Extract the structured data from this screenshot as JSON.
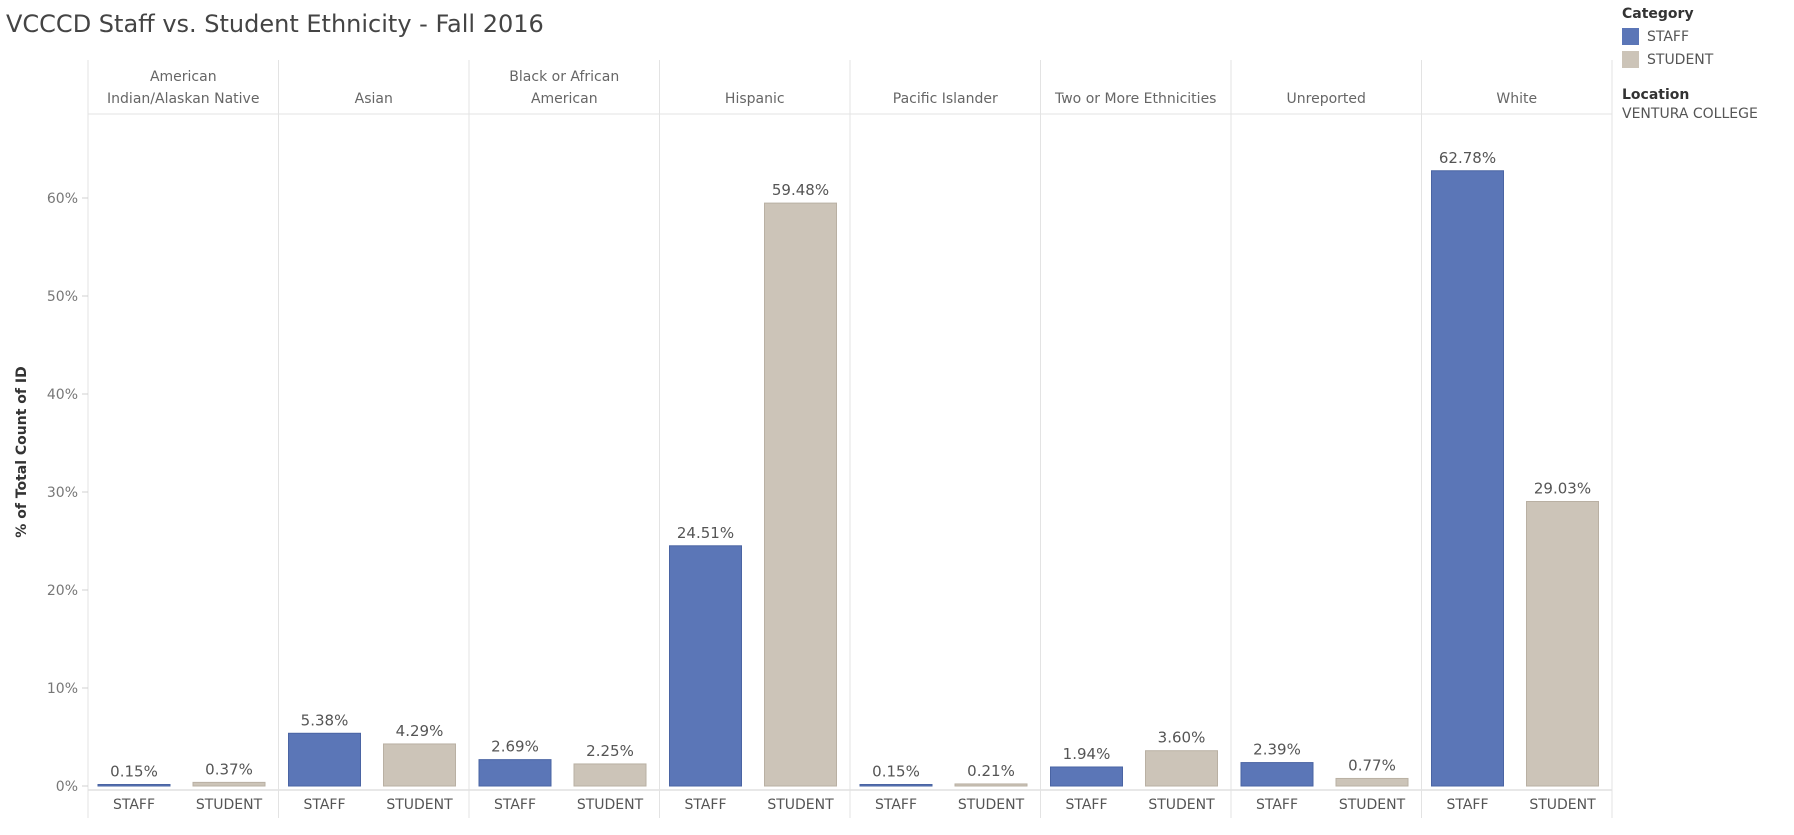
{
  "title": "VCCCD Staff vs. Student Ethnicity - Fall 2016",
  "legend": {
    "title": "Category",
    "items": [
      {
        "label": "STAFF",
        "color": "#5b76b7"
      },
      {
        "label": "STUDENT",
        "color": "#ccc4b8"
      }
    ],
    "location_title": "Location",
    "location_value": "VENTURA COLLEGE"
  },
  "chart_data": {
    "type": "bar",
    "title": "VCCCD Staff vs. Student Ethnicity - Fall 2016",
    "ylabel": "% of Total Count of ID",
    "ylim": [
      0,
      68
    ],
    "yticks": [
      0,
      10,
      20,
      30,
      40,
      50,
      60
    ],
    "ytick_labels": [
      "0%",
      "10%",
      "20%",
      "30%",
      "40%",
      "50%",
      "60%"
    ],
    "grid": false,
    "legend_position": "top-right",
    "groups": [
      {
        "name_lines": [
          "American",
          "Indian/Alaskan Native"
        ],
        "categories": [
          "STAFF",
          "STUDENT"
        ],
        "values": [
          0.15,
          0.37
        ],
        "labels": [
          "0.15%",
          "0.37%"
        ]
      },
      {
        "name_lines": [
          "Asian"
        ],
        "categories": [
          "STAFF",
          "STUDENT"
        ],
        "values": [
          5.38,
          4.29
        ],
        "labels": [
          "5.38%",
          "4.29%"
        ]
      },
      {
        "name_lines": [
          "Black or African",
          "American"
        ],
        "categories": [
          "STAFF",
          "STUDENT"
        ],
        "values": [
          2.69,
          2.25
        ],
        "labels": [
          "2.69%",
          "2.25%"
        ]
      },
      {
        "name_lines": [
          "Hispanic"
        ],
        "categories": [
          "STAFF",
          "STUDENT"
        ],
        "values": [
          24.51,
          59.48
        ],
        "labels": [
          "24.51%",
          "59.48%"
        ]
      },
      {
        "name_lines": [
          "Pacific Islander"
        ],
        "categories": [
          "STAFF",
          "STUDENT"
        ],
        "values": [
          0.15,
          0.21
        ],
        "labels": [
          "0.15%",
          "0.21%"
        ]
      },
      {
        "name_lines": [
          "Two or More Ethnicities"
        ],
        "categories": [
          "STAFF",
          "STUDENT"
        ],
        "values": [
          1.94,
          3.6
        ],
        "labels": [
          "1.94%",
          "3.60%"
        ]
      },
      {
        "name_lines": [
          "Unreported"
        ],
        "categories": [
          "STAFF",
          "STUDENT"
        ],
        "values": [
          2.39,
          0.77
        ],
        "labels": [
          "2.39%",
          "0.77%"
        ]
      },
      {
        "name_lines": [
          "White"
        ],
        "categories": [
          "STAFF",
          "STUDENT"
        ],
        "values": [
          62.78,
          29.03
        ],
        "labels": [
          "62.78%",
          "29.03%"
        ]
      }
    ],
    "colors": {
      "STAFF": "#5b76b7",
      "STUDENT": "#ccc4b8"
    }
  }
}
